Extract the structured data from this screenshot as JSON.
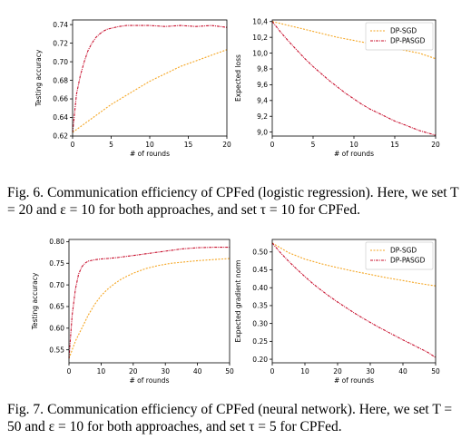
{
  "figures": [
    {
      "label": "Fig. 6.",
      "caption": "Communication efficiency of CPFed (logistic regression). Here, we set T = 20 and ε = 10 for both approaches, and set τ = 10 for CPFed."
    },
    {
      "label": "Fig. 7.",
      "caption": "Communication efficiency of CPFed (neural network). Here, we set T = 50 and ε = 10 for both approaches, and set τ = 5 for CPFed."
    }
  ],
  "colors": {
    "sgd": "#f5a623",
    "pasgd": "#c8102e",
    "axis": "#000000"
  },
  "chart_data": [
    {
      "type": "line",
      "xlabel": "# of rounds",
      "ylabel": "Testing accuracy",
      "xlim": [
        0,
        20
      ],
      "ylim": [
        0.62,
        0.745
      ],
      "xticks": [
        0,
        5,
        10,
        15,
        20
      ],
      "yticks": [
        0.62,
        0.64,
        0.66,
        0.68,
        0.7,
        0.72,
        0.74
      ],
      "ytick_labels": [
        "0.62",
        "0.64",
        "0.66",
        "0.68",
        "0.70",
        "0.72",
        "0.74"
      ],
      "legend": "none",
      "series": [
        {
          "key": "sgd",
          "x": [
            0,
            1,
            2,
            3,
            4,
            5,
            6,
            7,
            8,
            9,
            10,
            11,
            12,
            13,
            14,
            15,
            16,
            17,
            18,
            19,
            20
          ],
          "values": [
            0.624,
            0.63,
            0.636,
            0.642,
            0.648,
            0.654,
            0.659,
            0.664,
            0.669,
            0.674,
            0.679,
            0.683,
            0.687,
            0.691,
            0.695,
            0.698,
            0.701,
            0.704,
            0.707,
            0.71,
            0.713
          ]
        },
        {
          "key": "pasgd",
          "x": [
            0,
            0.5,
            1,
            1.5,
            2,
            2.5,
            3,
            3.5,
            4,
            4.5,
            5,
            6,
            7,
            8,
            9,
            10,
            12,
            14,
            16,
            18,
            20
          ],
          "values": [
            0.624,
            0.665,
            0.685,
            0.7,
            0.712,
            0.72,
            0.726,
            0.73,
            0.733,
            0.735,
            0.736,
            0.738,
            0.739,
            0.739,
            0.739,
            0.739,
            0.738,
            0.739,
            0.738,
            0.739,
            0.737
          ]
        }
      ]
    },
    {
      "type": "line",
      "xlabel": "# of rounds",
      "ylabel": "Expected loss",
      "xlim": [
        0,
        20
      ],
      "ylim": [
        8.95,
        10.42
      ],
      "xticks": [
        0,
        5,
        10,
        15,
        20
      ],
      "yticks": [
        9.0,
        9.2,
        9.4,
        9.6,
        9.8,
        10.0,
        10.2,
        10.4
      ],
      "ytick_labels": [
        "9,0",
        "9,2",
        "9,4",
        "9,6",
        "9,8",
        "10,0",
        "10,2",
        "10,4"
      ],
      "legend": "top-right",
      "series": [
        {
          "key": "sgd",
          "name": "DP-SGD",
          "x": [
            0,
            2,
            4,
            6,
            8,
            10,
            12,
            14,
            16,
            18,
            20
          ],
          "values": [
            10.4,
            10.35,
            10.3,
            10.25,
            10.2,
            10.16,
            10.12,
            10.08,
            10.04,
            10.0,
            9.93
          ]
        },
        {
          "key": "pasgd",
          "name": "DP-PASGD",
          "x": [
            0,
            1,
            2,
            3,
            4,
            5,
            6,
            7,
            8,
            9,
            10,
            11,
            12,
            13,
            14,
            15,
            16,
            17,
            18,
            19,
            20
          ],
          "values": [
            10.4,
            10.27,
            10.15,
            10.04,
            9.93,
            9.83,
            9.74,
            9.65,
            9.57,
            9.49,
            9.42,
            9.35,
            9.29,
            9.24,
            9.19,
            9.14,
            9.1,
            9.06,
            9.02,
            8.99,
            8.96
          ]
        }
      ]
    },
    {
      "type": "line",
      "xlabel": "# of rounds",
      "ylabel": "Testing accuracy",
      "xlim": [
        0,
        50
      ],
      "ylim": [
        0.52,
        0.805
      ],
      "xticks": [
        0,
        10,
        20,
        30,
        40,
        50
      ],
      "yticks": [
        0.55,
        0.6,
        0.65,
        0.7,
        0.75,
        0.8
      ],
      "ytick_labels": [
        "0.55",
        "0.60",
        "0.65",
        "0.70",
        "0.75",
        "0.80"
      ],
      "legend": "none",
      "series": [
        {
          "key": "sgd",
          "x": [
            0,
            2,
            4,
            6,
            8,
            10,
            12,
            14,
            16,
            18,
            20,
            24,
            28,
            32,
            36,
            40,
            44,
            48,
            50
          ],
          "values": [
            0.53,
            0.57,
            0.6,
            0.63,
            0.655,
            0.675,
            0.69,
            0.702,
            0.712,
            0.72,
            0.727,
            0.738,
            0.745,
            0.75,
            0.753,
            0.756,
            0.758,
            0.76,
            0.761
          ]
        },
        {
          "key": "pasgd",
          "x": [
            0,
            1,
            2,
            3,
            4,
            5,
            6,
            8,
            10,
            12,
            15,
            18,
            20,
            25,
            30,
            35,
            40,
            45,
            50
          ],
          "values": [
            0.53,
            0.63,
            0.69,
            0.725,
            0.742,
            0.75,
            0.755,
            0.758,
            0.76,
            0.761,
            0.763,
            0.766,
            0.768,
            0.773,
            0.778,
            0.783,
            0.786,
            0.787,
            0.787
          ]
        }
      ]
    },
    {
      "type": "line",
      "xlabel": "# of rounds",
      "ylabel": "Expected gradient norm",
      "xlim": [
        0,
        50
      ],
      "ylim": [
        0.19,
        0.535
      ],
      "xticks": [
        0,
        10,
        20,
        30,
        40,
        50
      ],
      "yticks": [
        0.2,
        0.25,
        0.3,
        0.35,
        0.4,
        0.45,
        0.5
      ],
      "ytick_labels": [
        "0.20",
        "0.25",
        "0.30",
        "0.35",
        "0.40",
        "0.45",
        "0.50"
      ],
      "legend": "top-right",
      "series": [
        {
          "key": "sgd",
          "name": "DP-SGD",
          "x": [
            0,
            5,
            10,
            15,
            20,
            25,
            30,
            35,
            40,
            45,
            50
          ],
          "values": [
            0.525,
            0.498,
            0.48,
            0.467,
            0.456,
            0.446,
            0.437,
            0.428,
            0.42,
            0.412,
            0.405
          ]
        },
        {
          "key": "pasgd",
          "name": "DP-PASGD",
          "x": [
            0,
            2.5,
            5,
            7.5,
            10,
            12.5,
            15,
            17.5,
            20,
            22.5,
            25,
            27.5,
            30,
            32.5,
            35,
            37.5,
            40,
            42.5,
            45,
            47.5,
            50
          ],
          "values": [
            0.525,
            0.498,
            0.474,
            0.452,
            0.431,
            0.411,
            0.393,
            0.376,
            0.36,
            0.345,
            0.33,
            0.316,
            0.303,
            0.29,
            0.278,
            0.266,
            0.254,
            0.243,
            0.231,
            0.22,
            0.205
          ]
        }
      ]
    }
  ]
}
